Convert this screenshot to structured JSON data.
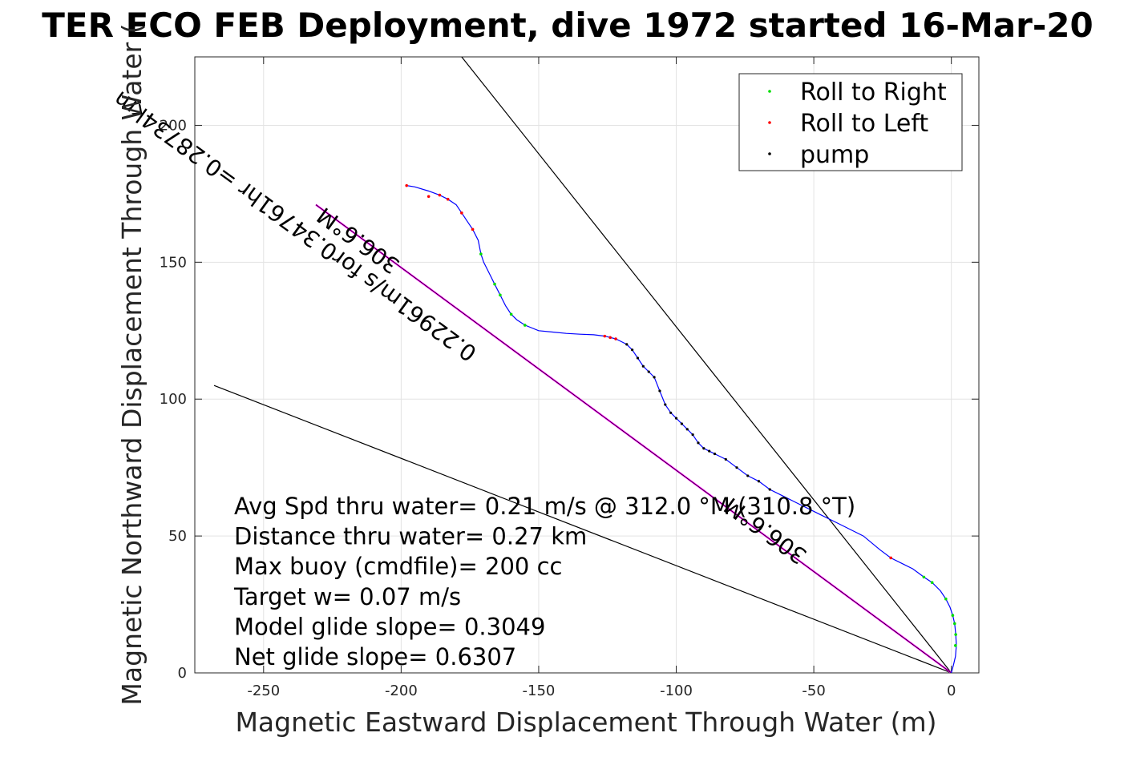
{
  "chart_data": {
    "type": "scatter",
    "title": "TER ECO FEB Deployment, dive 1972 started 16-Mar-20",
    "xlabel": "Magnetic Eastward Displacement Through Water (m)",
    "ylabel": "Magnetic Northward Displacement Through Water (",
    "xlim": [
      -275,
      10
    ],
    "ylim": [
      0,
      225
    ],
    "xticks": [
      -250,
      -200,
      -150,
      -100,
      -50,
      0
    ],
    "yticks": [
      0,
      50,
      100,
      150,
      200
    ],
    "grid": true,
    "legend_position": "top-right",
    "colors": {
      "track": "#0000ff",
      "roll_right": "#00dd00",
      "roll_left": "#ff0000",
      "pump": "#000000",
      "glide_line": "#ff00ff",
      "reference": "#000000"
    },
    "legend": [
      {
        "label": "Roll to Right",
        "color": "#00dd00"
      },
      {
        "label": "Roll to Left",
        "color": "#ff0000"
      },
      {
        "label": "pump",
        "color": "#000000"
      }
    ],
    "track": {
      "name": "",
      "x": [
        0,
        0.8,
        1.5,
        1.8,
        1.6,
        1.2,
        0.5,
        -0.5,
        -2,
        -4,
        -7,
        -10,
        -14,
        -18,
        -22,
        -26,
        -32,
        -40,
        -48,
        -56,
        -62,
        -66,
        -70,
        -74,
        -78,
        -82,
        -86,
        -88,
        -90,
        -92,
        -94,
        -96,
        -98,
        -100,
        -102,
        -104,
        -106,
        -108,
        -110,
        -112,
        -114,
        -116,
        -118,
        -120,
        -122,
        -124,
        -126,
        -130,
        -135,
        -140,
        -145,
        -150,
        -155,
        -158,
        -160,
        -162,
        -164,
        -166,
        -168,
        -170,
        -171,
        -172,
        -174,
        -176,
        -178,
        -180,
        -183,
        -186,
        -190,
        -195,
        -198
      ],
      "y": [
        0,
        3,
        6,
        10,
        14,
        18,
        21,
        24,
        27,
        30,
        33,
        35,
        38,
        40,
        42,
        45,
        50,
        54,
        58,
        62,
        65,
        67,
        70,
        72,
        75,
        78,
        80,
        81,
        82,
        84,
        87,
        89,
        91,
        93,
        95,
        98,
        103,
        108,
        110,
        112,
        115,
        118,
        120,
        121,
        122,
        122.5,
        123,
        123.5,
        123.7,
        124,
        124.5,
        125,
        127,
        129,
        131,
        134,
        138,
        142,
        146,
        150,
        153,
        158,
        162,
        165,
        168,
        171,
        173,
        174.5,
        176,
        177.5,
        178
      ]
    },
    "roll_right": {
      "x": [
        1.5,
        1.6,
        1.2,
        0.5,
        -2,
        -7,
        -10,
        -155,
        -160,
        -164,
        -166,
        -171
      ],
      "y": [
        10,
        14,
        18,
        21,
        27,
        33,
        35,
        127,
        131,
        138,
        142,
        153
      ]
    },
    "roll_left": {
      "x": [
        -22,
        -124,
        -126,
        -122,
        -186,
        -183,
        -178,
        -174,
        -190,
        -198
      ],
      "y": [
        42,
        122.5,
        123,
        122,
        174.5,
        173,
        168,
        162,
        174,
        178
      ]
    },
    "pump": {
      "x": [
        -66,
        -70,
        -74,
        -78,
        -82,
        -86,
        -88,
        -90,
        -92,
        -94,
        -96,
        -98,
        -100,
        -102,
        -104,
        -106,
        -108,
        -110,
        -112,
        -114,
        -116,
        -118
      ],
      "y": [
        67,
        70,
        72,
        75,
        78,
        80,
        81,
        82,
        84,
        87,
        89,
        91,
        93,
        95,
        98,
        103,
        108,
        110,
        112,
        115,
        118,
        120
      ]
    },
    "reference_lines": [
      {
        "name": "upper",
        "x": [
          0,
          -178
        ],
        "y": [
          0,
          225
        ]
      },
      {
        "name": "lower",
        "x": [
          0,
          -268
        ],
        "y": [
          0,
          105
        ]
      }
    ],
    "glide_line": {
      "x": [
        0,
        -231
      ],
      "y": [
        0,
        171
      ]
    },
    "annotations": [
      {
        "text": "306.6°M",
        "x": -200,
        "y": 150,
        "angle_deg": 36
      },
      {
        "text": "0.22961m/s for0.34761hr =0.28734km",
        "x": -172,
        "y": 118,
        "angle_deg": 36
      },
      {
        "text": "306.6°M",
        "x": -52,
        "y": 44,
        "angle_deg": 36
      }
    ],
    "stats": [
      "Avg Spd thru water=  0.21 m/s @ 312.0 °M (310.8 °T)",
      "Distance thru water=  0.27 km",
      "Max buoy (cmdfile)= 200 cc",
      "Target w= 0.07 m/s",
      "Model glide slope= 0.3049",
      "Net glide slope= 0.6307"
    ]
  }
}
